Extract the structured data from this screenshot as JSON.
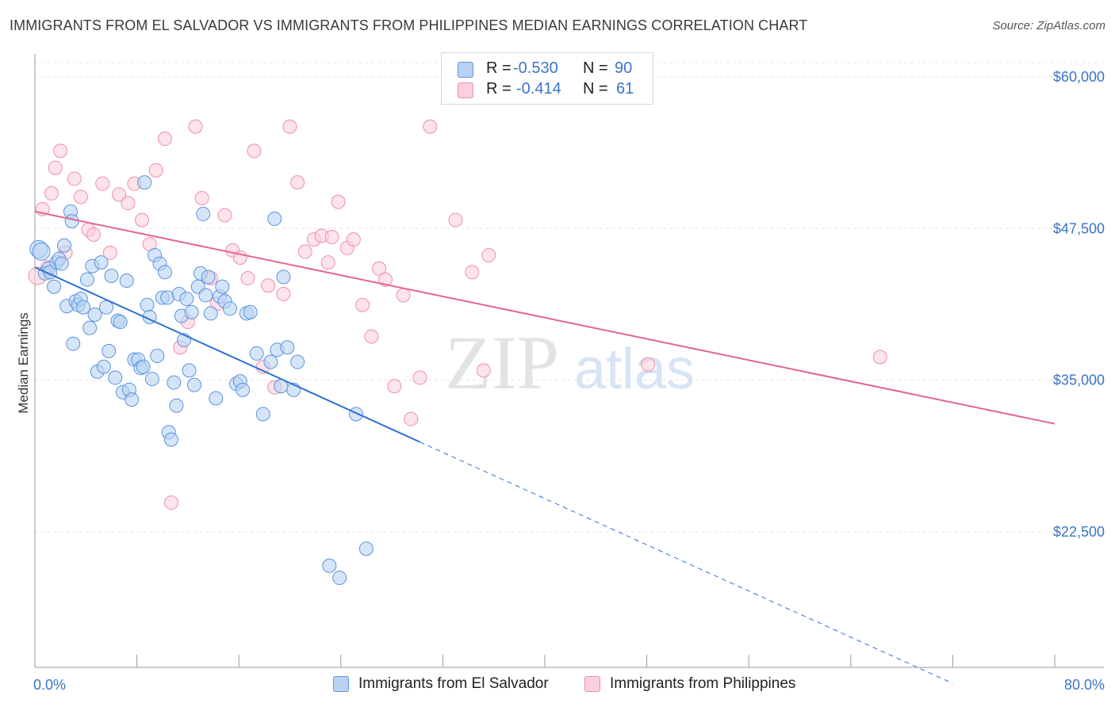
{
  "title": "IMMIGRANTS FROM EL SALVADOR VS IMMIGRANTS FROM PHILIPPINES MEDIAN EARNINGS CORRELATION CHART",
  "source": "Source: ZipAtlas.com",
  "watermark": {
    "zip": "ZIP",
    "atlas": "atlas"
  },
  "legend": {
    "rows": [
      {
        "r_label": "R =",
        "r_value": "-0.530",
        "n_label": "N =",
        "n_value": "90"
      },
      {
        "r_label": "R =",
        "r_value": "-0.414",
        "n_label": "N =",
        "n_value": "61"
      }
    ]
  },
  "bottom_legend": {
    "series1": "Immigrants from El Salvador",
    "series2": "Immigrants from Philippines"
  },
  "colors": {
    "blue_fill": "#b9d3f3",
    "blue_stroke": "#5b93dd",
    "blue_line": "#2f6fd6",
    "pink_fill": "#fbd0dc",
    "pink_stroke": "#ee8fad",
    "pink_line": "#e2668f",
    "axis_text": "#3b74c9"
  },
  "chart_data": {
    "type": "scatter",
    "xlabel": "",
    "ylabel": "Median Earnings",
    "xlim": [
      0,
      80
    ],
    "ylim": [
      12000,
      62000
    ],
    "x_tick_labels": [
      {
        "value": 0,
        "label": "0.0%"
      },
      {
        "value": 80,
        "label": "80.0%"
      }
    ],
    "y_ticks": [
      {
        "value": 60000,
        "label": "$60,000"
      },
      {
        "value": 47500,
        "label": "$47,500"
      },
      {
        "value": 35000,
        "label": "$35,000"
      },
      {
        "value": 22500,
        "label": "$22,500"
      }
    ],
    "x_minor_ticks": [
      0,
      8,
      16,
      24,
      32,
      40,
      48,
      56,
      64,
      72,
      80
    ],
    "series": [
      {
        "name": "Immigrants from El Salvador",
        "color": "blue",
        "r": -0.53,
        "n": 90,
        "trend": {
          "x1": 0,
          "y1": 44300,
          "x2": 30.2,
          "y2": 29900,
          "dash_to_x": 72,
          "dash_to_y": 10000
        },
        "points": [
          [
            0.3,
            45800
          ],
          [
            0.5,
            45600
          ],
          [
            0.8,
            43800
          ],
          [
            1.1,
            44200
          ],
          [
            1.2,
            43900
          ],
          [
            1.5,
            42700
          ],
          [
            1.7,
            44700
          ],
          [
            1.9,
            45000
          ],
          [
            2.1,
            44600
          ],
          [
            2.3,
            46100
          ],
          [
            2.5,
            41100
          ],
          [
            2.8,
            48900
          ],
          [
            2.9,
            48100
          ],
          [
            3.0,
            38000
          ],
          [
            3.2,
            41500
          ],
          [
            3.4,
            41200
          ],
          [
            3.6,
            41700
          ],
          [
            3.8,
            41000
          ],
          [
            4.1,
            43300
          ],
          [
            4.3,
            39300
          ],
          [
            4.5,
            44400
          ],
          [
            4.7,
            40400
          ],
          [
            4.9,
            35700
          ],
          [
            5.2,
            44700
          ],
          [
            5.4,
            36100
          ],
          [
            5.6,
            41000
          ],
          [
            5.8,
            37400
          ],
          [
            6.0,
            43600
          ],
          [
            6.3,
            35200
          ],
          [
            6.5,
            39900
          ],
          [
            6.7,
            39800
          ],
          [
            6.9,
            34000
          ],
          [
            7.2,
            43200
          ],
          [
            7.4,
            34200
          ],
          [
            7.6,
            33400
          ],
          [
            7.8,
            36700
          ],
          [
            8.1,
            36700
          ],
          [
            8.3,
            36000
          ],
          [
            8.5,
            36100
          ],
          [
            8.6,
            51300
          ],
          [
            8.8,
            41200
          ],
          [
            9.0,
            40200
          ],
          [
            9.2,
            35100
          ],
          [
            9.4,
            45300
          ],
          [
            9.6,
            37000
          ],
          [
            9.8,
            44600
          ],
          [
            10.0,
            41800
          ],
          [
            10.2,
            43900
          ],
          [
            10.4,
            41800
          ],
          [
            10.5,
            30700
          ],
          [
            10.7,
            30100
          ],
          [
            10.9,
            34800
          ],
          [
            11.1,
            32900
          ],
          [
            11.3,
            42100
          ],
          [
            11.5,
            40300
          ],
          [
            11.7,
            38300
          ],
          [
            11.9,
            41700
          ],
          [
            12.1,
            35800
          ],
          [
            12.3,
            40600
          ],
          [
            12.5,
            34600
          ],
          [
            12.8,
            42700
          ],
          [
            13.0,
            43800
          ],
          [
            13.2,
            48700
          ],
          [
            13.4,
            42000
          ],
          [
            13.6,
            43500
          ],
          [
            13.8,
            40500
          ],
          [
            14.2,
            33500
          ],
          [
            14.5,
            41900
          ],
          [
            14.7,
            42700
          ],
          [
            14.9,
            41500
          ],
          [
            15.3,
            40900
          ],
          [
            15.8,
            34700
          ],
          [
            16.1,
            34900
          ],
          [
            16.3,
            34200
          ],
          [
            16.6,
            40500
          ],
          [
            16.9,
            40600
          ],
          [
            17.4,
            37200
          ],
          [
            17.9,
            32200
          ],
          [
            18.5,
            36500
          ],
          [
            18.8,
            48300
          ],
          [
            19.0,
            37500
          ],
          [
            19.3,
            34500
          ],
          [
            19.5,
            43500
          ],
          [
            19.8,
            37700
          ],
          [
            20.3,
            34200
          ],
          [
            20.6,
            36500
          ],
          [
            23.1,
            19700
          ],
          [
            23.9,
            18700
          ],
          [
            25.2,
            32200
          ],
          [
            26.0,
            21100
          ]
        ]
      },
      {
        "name": "Immigrants from Philippines",
        "color": "pink",
        "r": -0.414,
        "n": 61,
        "trend": {
          "x1": 0,
          "y1": 48900,
          "x2": 80,
          "y2": 31400
        },
        "points": [
          [
            0.2,
            43600
          ],
          [
            0.6,
            49100
          ],
          [
            1.0,
            44300
          ],
          [
            1.3,
            50400
          ],
          [
            1.6,
            52500
          ],
          [
            2.0,
            53900
          ],
          [
            2.4,
            45500
          ],
          [
            3.1,
            51600
          ],
          [
            3.6,
            50100
          ],
          [
            4.2,
            47400
          ],
          [
            4.6,
            47000
          ],
          [
            5.3,
            51200
          ],
          [
            5.9,
            45500
          ],
          [
            6.6,
            50300
          ],
          [
            7.3,
            49600
          ],
          [
            7.8,
            51200
          ],
          [
            8.4,
            48200
          ],
          [
            9.0,
            46200
          ],
          [
            9.5,
            52300
          ],
          [
            10.2,
            54900
          ],
          [
            10.7,
            24900
          ],
          [
            11.4,
            37700
          ],
          [
            12.0,
            39800
          ],
          [
            12.6,
            55900
          ],
          [
            13.1,
            50000
          ],
          [
            13.8,
            43400
          ],
          [
            14.3,
            41300
          ],
          [
            14.9,
            48600
          ],
          [
            15.5,
            45700
          ],
          [
            16.1,
            45100
          ],
          [
            16.7,
            43400
          ],
          [
            17.2,
            53900
          ],
          [
            17.9,
            36100
          ],
          [
            18.3,
            42800
          ],
          [
            18.8,
            34400
          ],
          [
            19.5,
            42100
          ],
          [
            20.0,
            55900
          ],
          [
            20.6,
            51300
          ],
          [
            21.2,
            45600
          ],
          [
            21.9,
            46600
          ],
          [
            22.5,
            46900
          ],
          [
            23.0,
            44700
          ],
          [
            23.8,
            49700
          ],
          [
            24.5,
            45900
          ],
          [
            25.0,
            46600
          ],
          [
            25.7,
            41200
          ],
          [
            26.4,
            38600
          ],
          [
            27.0,
            44200
          ],
          [
            27.5,
            43300
          ],
          [
            28.2,
            34500
          ],
          [
            28.9,
            42000
          ],
          [
            29.5,
            31800
          ],
          [
            30.2,
            35200
          ],
          [
            31.0,
            55900
          ],
          [
            33.0,
            48200
          ],
          [
            34.3,
            43900
          ],
          [
            35.2,
            35800
          ],
          [
            35.6,
            45300
          ],
          [
            48.1,
            36300
          ],
          [
            66.3,
            36900
          ],
          [
            23.3,
            46800
          ]
        ]
      }
    ]
  }
}
